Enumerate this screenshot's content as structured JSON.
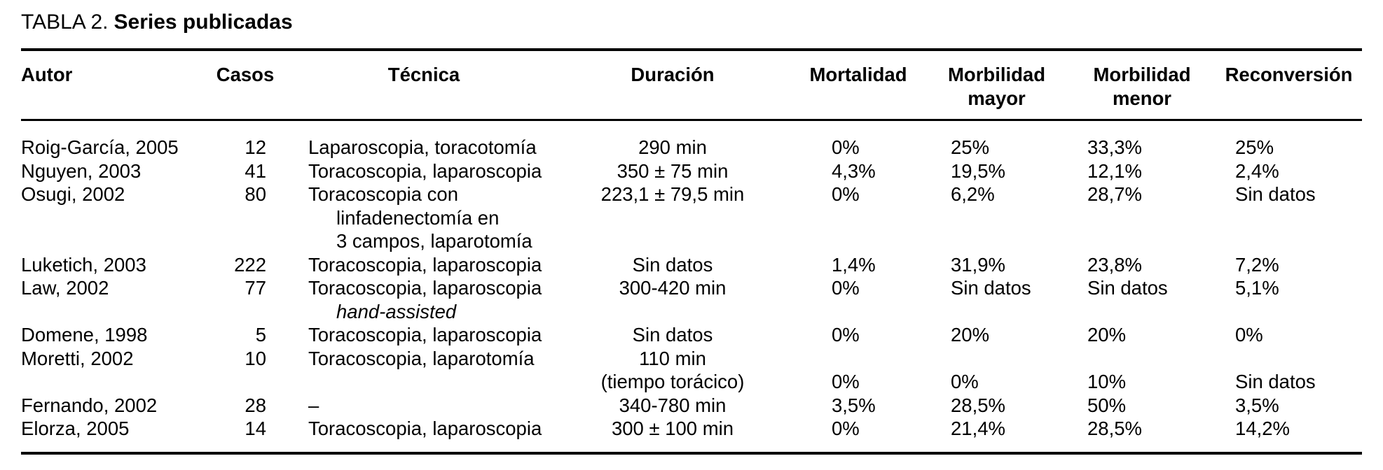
{
  "title": {
    "prefix": "TABLA 2.",
    "text": "Series publicadas"
  },
  "colors": {
    "text": "#000000",
    "background": "#ffffff",
    "rule": "#000000"
  },
  "columns": [
    {
      "id": "autor",
      "label": "Autor"
    },
    {
      "id": "casos",
      "label": "Casos"
    },
    {
      "id": "tecnica",
      "label": "Técnica"
    },
    {
      "id": "duracion",
      "label": "Duración"
    },
    {
      "id": "mortalidad",
      "label": "Mortalidad"
    },
    {
      "id": "morbilidad_mayor",
      "label": "Morbilidad",
      "label2": "mayor"
    },
    {
      "id": "morbilidad_menor",
      "label": "Morbilidad",
      "label2": "menor"
    },
    {
      "id": "reconversion",
      "label": "Reconversión"
    }
  ],
  "rows": [
    {
      "autor": "Roig-García, 2005",
      "casos": "12",
      "tecnica": "Laparoscopia, toracotomía",
      "duracion": "290 min",
      "mortalidad": "0%",
      "morbilidad_mayor": "25%",
      "morbilidad_menor": "33,3%",
      "reconversion": "25%"
    },
    {
      "autor": "Nguyen, 2003",
      "casos": "41",
      "tecnica": "Toracoscopia, laparoscopia",
      "duracion": "350 ± 75 min",
      "mortalidad": "4,3%",
      "morbilidad_mayor": "19,5%",
      "morbilidad_menor": "12,1%",
      "reconversion": "2,4%"
    },
    {
      "autor": "Osugi, 2002",
      "casos": "80",
      "tecnica": [
        {
          "t": "Toracoscopia con"
        },
        {
          "t": "linfadenectomía en",
          "indent": true
        },
        {
          "t": "3 campos, laparotomía",
          "indent": true
        }
      ],
      "duracion": "223,1 ± 79,5 min",
      "mortalidad": "0%",
      "morbilidad_mayor": "6,2%",
      "morbilidad_menor": "28,7%",
      "reconversion": "Sin datos"
    },
    {
      "autor": "Luketich, 2003",
      "casos": "222",
      "tecnica": "Toracoscopia, laparoscopia",
      "duracion": "Sin datos",
      "mortalidad": "1,4%",
      "morbilidad_mayor": "31,9%",
      "morbilidad_menor": "23,8%",
      "reconversion": "7,2%"
    },
    {
      "autor": "Law, 2002",
      "casos": "77",
      "tecnica": [
        {
          "t": "Toracoscopia, laparoscopia"
        },
        {
          "t": "hand-assisted",
          "indent": true,
          "italic": true
        }
      ],
      "duracion": "300-420 min",
      "mortalidad": "0%",
      "morbilidad_mayor": "Sin datos",
      "morbilidad_menor": "Sin datos",
      "reconversion": "5,1%"
    },
    {
      "autor": "Domene, 1998",
      "casos": "5",
      "tecnica": "Toracoscopia, laparoscopia",
      "duracion": "Sin datos",
      "mortalidad": "0%",
      "morbilidad_mayor": "20%",
      "morbilidad_menor": "20%",
      "reconversion": "0%"
    },
    {
      "autor": "Moretti, 2002",
      "casos": "10",
      "tecnica": "Toracoscopia, laparotomía",
      "duracion": [
        {
          "t": "110 min"
        },
        {
          "t": "(tiempo torácico)"
        }
      ],
      "mortalidad": [
        {
          "t": ""
        },
        {
          "t": "0%"
        }
      ],
      "morbilidad_mayor": [
        {
          "t": ""
        },
        {
          "t": "0%"
        }
      ],
      "morbilidad_menor": [
        {
          "t": ""
        },
        {
          "t": "10%"
        }
      ],
      "reconversion": [
        {
          "t": ""
        },
        {
          "t": "Sin datos"
        }
      ]
    },
    {
      "autor": "Fernando, 2002",
      "casos": "28",
      "tecnica": "–",
      "duracion": "340-780 min",
      "mortalidad": "3,5%",
      "morbilidad_mayor": "28,5%",
      "morbilidad_menor": "50%",
      "reconversion": "3,5%"
    },
    {
      "autor": "Elorza, 2005",
      "casos": "14",
      "tecnica": "Toracoscopia, laparoscopia",
      "duracion": "300 ± 100 min",
      "mortalidad": "0%",
      "morbilidad_mayor": "21,4%",
      "morbilidad_menor": "28,5%",
      "reconversion": "14,2%"
    }
  ]
}
